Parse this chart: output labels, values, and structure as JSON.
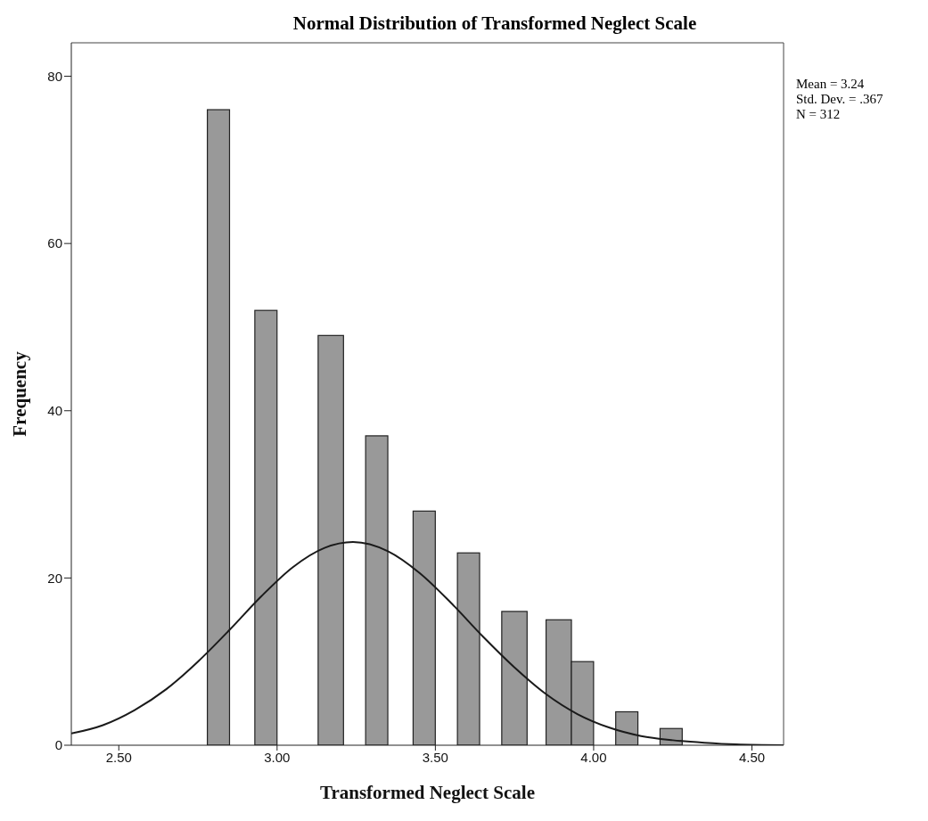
{
  "chart_data": {
    "type": "histogram",
    "title": "Normal Distribution of Transformed Neglect Scale",
    "xlabel": "Transformed Neglect Scale",
    "ylabel": "Frequency",
    "bins": [
      2.78,
      2.85,
      2.93,
      3.0,
      3.13,
      3.21,
      3.28,
      3.35,
      3.43,
      3.5,
      3.57,
      3.64,
      3.71,
      3.79,
      3.85,
      3.93,
      4.0,
      4.07,
      4.14,
      4.21,
      4.28
    ],
    "values": [
      76,
      0,
      52,
      0,
      49,
      0,
      37,
      0,
      28,
      0,
      23,
      0,
      16,
      0,
      15,
      10,
      0,
      4,
      0,
      2
    ],
    "color": "#999999",
    "series": [
      {
        "type": "line",
        "color": "#1a1a1a",
        "x": [
          2.35,
          2.45,
          2.55,
          2.65,
          2.75,
          2.85,
          2.95,
          3.05,
          3.15,
          3.24,
          3.35,
          3.45,
          3.55,
          3.65,
          3.75,
          3.85,
          3.95,
          4.05,
          4.15,
          4.25,
          4.35,
          4.45,
          4.6
        ],
        "values": [
          1.4,
          2.4,
          4.2,
          6.7,
          10.0,
          13.8,
          17.8,
          21.3,
          23.6,
          24.3,
          23.2,
          20.6,
          17.0,
          13.0,
          9.3,
          6.1,
          3.7,
          2.1,
          1.1,
          0.6,
          0.3,
          0.1,
          0.0
        ]
      }
    ],
    "xlim": [
      2.35,
      4.6
    ],
    "xticks": [
      {
        "value": 2.5,
        "label": "2.50"
      },
      {
        "value": 3.0,
        "label": "3.00"
      },
      {
        "value": 3.5,
        "label": "3.50"
      },
      {
        "value": 4.0,
        "label": "4.00"
      },
      {
        "value": 4.5,
        "label": "4.50"
      }
    ],
    "ylim": [
      0,
      84
    ],
    "yticks": [
      0,
      20,
      40,
      60,
      80
    ],
    "annotations": [
      "Mean = 3.24",
      "Std. Dev. = .367",
      "N = 312"
    ],
    "legend": false,
    "grid": false
  }
}
